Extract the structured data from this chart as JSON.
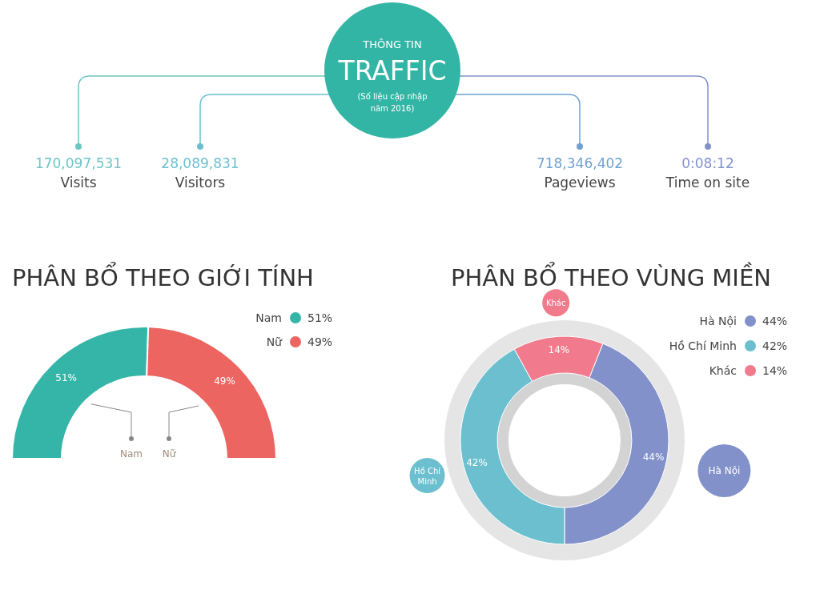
{
  "chart_data": [
    {
      "type": "other",
      "title": "TRAFFIC",
      "subtitle": "THÔNG TIN",
      "annotations": [
        "(Số liệu cập nhập năm 2016)",
        "170,097,531",
        "Visits",
        "28,089,831",
        "Visitors",
        "718,346,402",
        "Pageviews",
        "0:08:12",
        "Time on site"
      ]
    },
    {
      "type": "donut",
      "title": "PHÂN BỔ THEO GIỚI TÍNH",
      "categories": [
        "Nam",
        "Nữ"
      ],
      "values": [
        51,
        49
      ],
      "colors": [
        "#34b5a8",
        "#ec6560"
      ],
      "value_labels": [
        "51%",
        "49%"
      ],
      "legend": "top right"
    },
    {
      "type": "donut",
      "title": "PHÂN BỔ THEO VÙNG MIỀN",
      "categories": [
        "Hà Nội",
        "Hồ Chí Minh",
        "Khác"
      ],
      "values": [
        44,
        42,
        14
      ],
      "colors": [
        "#8291c9",
        "#6bbfce",
        "#f17a8c"
      ],
      "value_labels": [
        "44%",
        "42%",
        "14%"
      ],
      "legend": "top right"
    }
  ]
}
